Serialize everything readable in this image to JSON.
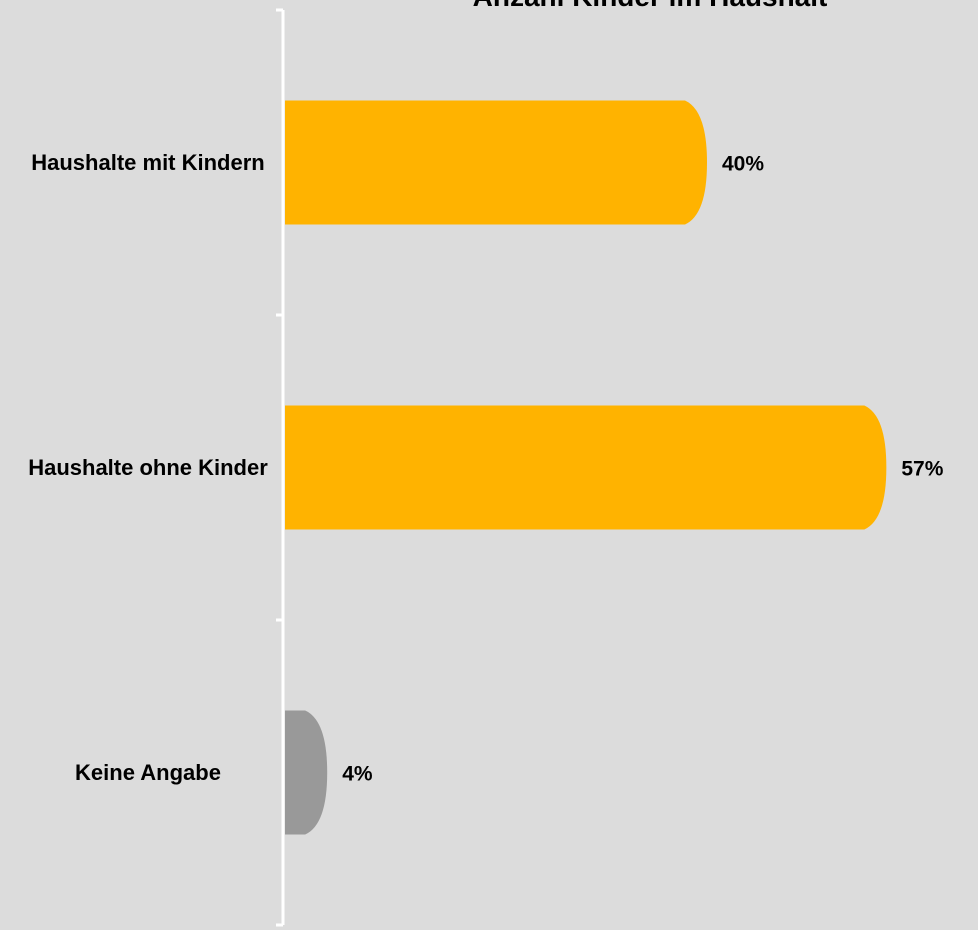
{
  "chart_data": {
    "type": "bar",
    "orientation": "horizontal",
    "title": "Anzahl Kinder im Haushalt",
    "categories": [
      "Haushalte mit Kindern",
      "Haushalte ohne Kinder",
      "Keine Angabe"
    ],
    "values": [
      40,
      57,
      4
    ],
    "value_labels": [
      "40%",
      "57%",
      "4%"
    ],
    "colors": [
      "#ffb300",
      "#ffb300",
      "#999999"
    ]
  }
}
